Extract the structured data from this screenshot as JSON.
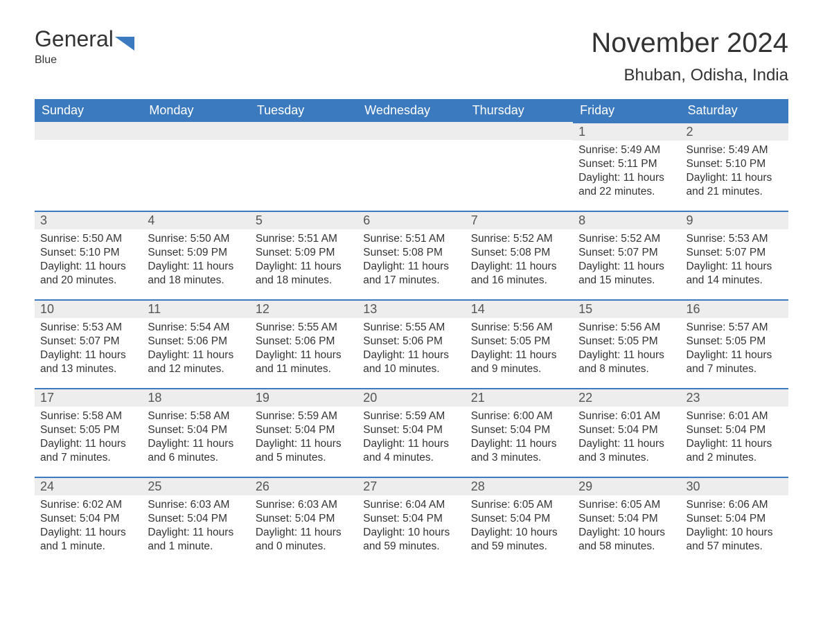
{
  "brand": {
    "part1": "General",
    "part2": "Blue",
    "accent_color": "#3b7abf"
  },
  "title": "November 2024",
  "location": "Bhuban, Odisha, India",
  "colors": {
    "header_bg": "#3b7abf",
    "header_text": "#ffffff",
    "daybar_bg": "#ededed",
    "daybar_border": "#3b7abf",
    "body_text": "#333333",
    "page_bg": "#ffffff"
  },
  "font": {
    "family": "Arial",
    "title_size": 40,
    "location_size": 24,
    "header_size": 18,
    "body_size": 15.5
  },
  "weekdays": [
    "Sunday",
    "Monday",
    "Tuesday",
    "Wednesday",
    "Thursday",
    "Friday",
    "Saturday"
  ],
  "weeks": [
    [
      null,
      null,
      null,
      null,
      null,
      {
        "n": "1",
        "sunrise": "5:49 AM",
        "sunset": "5:11 PM",
        "daylight": "11 hours and 22 minutes."
      },
      {
        "n": "2",
        "sunrise": "5:49 AM",
        "sunset": "5:10 PM",
        "daylight": "11 hours and 21 minutes."
      }
    ],
    [
      {
        "n": "3",
        "sunrise": "5:50 AM",
        "sunset": "5:10 PM",
        "daylight": "11 hours and 20 minutes."
      },
      {
        "n": "4",
        "sunrise": "5:50 AM",
        "sunset": "5:09 PM",
        "daylight": "11 hours and 18 minutes."
      },
      {
        "n": "5",
        "sunrise": "5:51 AM",
        "sunset": "5:09 PM",
        "daylight": "11 hours and 18 minutes."
      },
      {
        "n": "6",
        "sunrise": "5:51 AM",
        "sunset": "5:08 PM",
        "daylight": "11 hours and 17 minutes."
      },
      {
        "n": "7",
        "sunrise": "5:52 AM",
        "sunset": "5:08 PM",
        "daylight": "11 hours and 16 minutes."
      },
      {
        "n": "8",
        "sunrise": "5:52 AM",
        "sunset": "5:07 PM",
        "daylight": "11 hours and 15 minutes."
      },
      {
        "n": "9",
        "sunrise": "5:53 AM",
        "sunset": "5:07 PM",
        "daylight": "11 hours and 14 minutes."
      }
    ],
    [
      {
        "n": "10",
        "sunrise": "5:53 AM",
        "sunset": "5:07 PM",
        "daylight": "11 hours and 13 minutes."
      },
      {
        "n": "11",
        "sunrise": "5:54 AM",
        "sunset": "5:06 PM",
        "daylight": "11 hours and 12 minutes."
      },
      {
        "n": "12",
        "sunrise": "5:55 AM",
        "sunset": "5:06 PM",
        "daylight": "11 hours and 11 minutes."
      },
      {
        "n": "13",
        "sunrise": "5:55 AM",
        "sunset": "5:06 PM",
        "daylight": "11 hours and 10 minutes."
      },
      {
        "n": "14",
        "sunrise": "5:56 AM",
        "sunset": "5:05 PM",
        "daylight": "11 hours and 9 minutes."
      },
      {
        "n": "15",
        "sunrise": "5:56 AM",
        "sunset": "5:05 PM",
        "daylight": "11 hours and 8 minutes."
      },
      {
        "n": "16",
        "sunrise": "5:57 AM",
        "sunset": "5:05 PM",
        "daylight": "11 hours and 7 minutes."
      }
    ],
    [
      {
        "n": "17",
        "sunrise": "5:58 AM",
        "sunset": "5:05 PM",
        "daylight": "11 hours and 7 minutes."
      },
      {
        "n": "18",
        "sunrise": "5:58 AM",
        "sunset": "5:04 PM",
        "daylight": "11 hours and 6 minutes."
      },
      {
        "n": "19",
        "sunrise": "5:59 AM",
        "sunset": "5:04 PM",
        "daylight": "11 hours and 5 minutes."
      },
      {
        "n": "20",
        "sunrise": "5:59 AM",
        "sunset": "5:04 PM",
        "daylight": "11 hours and 4 minutes."
      },
      {
        "n": "21",
        "sunrise": "6:00 AM",
        "sunset": "5:04 PM",
        "daylight": "11 hours and 3 minutes."
      },
      {
        "n": "22",
        "sunrise": "6:01 AM",
        "sunset": "5:04 PM",
        "daylight": "11 hours and 3 minutes."
      },
      {
        "n": "23",
        "sunrise": "6:01 AM",
        "sunset": "5:04 PM",
        "daylight": "11 hours and 2 minutes."
      }
    ],
    [
      {
        "n": "24",
        "sunrise": "6:02 AM",
        "sunset": "5:04 PM",
        "daylight": "11 hours and 1 minute."
      },
      {
        "n": "25",
        "sunrise": "6:03 AM",
        "sunset": "5:04 PM",
        "daylight": "11 hours and 1 minute."
      },
      {
        "n": "26",
        "sunrise": "6:03 AM",
        "sunset": "5:04 PM",
        "daylight": "11 hours and 0 minutes."
      },
      {
        "n": "27",
        "sunrise": "6:04 AM",
        "sunset": "5:04 PM",
        "daylight": "10 hours and 59 minutes."
      },
      {
        "n": "28",
        "sunrise": "6:05 AM",
        "sunset": "5:04 PM",
        "daylight": "10 hours and 59 minutes."
      },
      {
        "n": "29",
        "sunrise": "6:05 AM",
        "sunset": "5:04 PM",
        "daylight": "10 hours and 58 minutes."
      },
      {
        "n": "30",
        "sunrise": "6:06 AM",
        "sunset": "5:04 PM",
        "daylight": "10 hours and 57 minutes."
      }
    ]
  ],
  "labels": {
    "sunrise": "Sunrise:",
    "sunset": "Sunset:",
    "daylight": "Daylight:"
  }
}
